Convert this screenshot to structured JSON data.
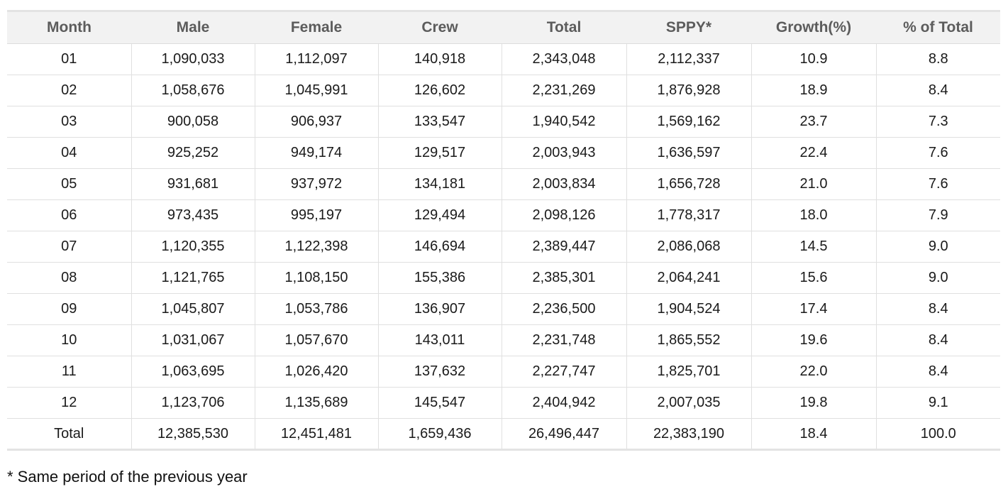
{
  "table": {
    "headers": [
      "Month",
      "Male",
      "Female",
      "Crew",
      "Total",
      "SPPY*",
      "Growth(%)",
      "% of Total"
    ],
    "rows": [
      [
        "01",
        "1,090,033",
        "1,112,097",
        "140,918",
        "2,343,048",
        "2,112,337",
        "10.9",
        "8.8"
      ],
      [
        "02",
        "1,058,676",
        "1,045,991",
        "126,602",
        "2,231,269",
        "1,876,928",
        "18.9",
        "8.4"
      ],
      [
        "03",
        "900,058",
        "906,937",
        "133,547",
        "1,940,542",
        "1,569,162",
        "23.7",
        "7.3"
      ],
      [
        "04",
        "925,252",
        "949,174",
        "129,517",
        "2,003,943",
        "1,636,597",
        "22.4",
        "7.6"
      ],
      [
        "05",
        "931,681",
        "937,972",
        "134,181",
        "2,003,834",
        "1,656,728",
        "21.0",
        "7.6"
      ],
      [
        "06",
        "973,435",
        "995,197",
        "129,494",
        "2,098,126",
        "1,778,317",
        "18.0",
        "7.9"
      ],
      [
        "07",
        "1,120,355",
        "1,122,398",
        "146,694",
        "2,389,447",
        "2,086,068",
        "14.5",
        "9.0"
      ],
      [
        "08",
        "1,121,765",
        "1,108,150",
        "155,386",
        "2,385,301",
        "2,064,241",
        "15.6",
        "9.0"
      ],
      [
        "09",
        "1,045,807",
        "1,053,786",
        "136,907",
        "2,236,500",
        "1,904,524",
        "17.4",
        "8.4"
      ],
      [
        "10",
        "1,031,067",
        "1,057,670",
        "143,011",
        "2,231,748",
        "1,865,552",
        "19.6",
        "8.4"
      ],
      [
        "11",
        "1,063,695",
        "1,026,420",
        "137,632",
        "2,227,747",
        "1,825,701",
        "22.0",
        "8.4"
      ],
      [
        "12",
        "1,123,706",
        "1,135,689",
        "145,547",
        "2,404,942",
        "2,007,035",
        "19.8",
        "9.1"
      ]
    ],
    "total_row": [
      "Total",
      "12,385,530",
      "12,451,481",
      "1,659,436",
      "26,496,447",
      "22,383,190",
      "18.4",
      "100.0"
    ]
  },
  "footnote": "* Same period of the previous year"
}
